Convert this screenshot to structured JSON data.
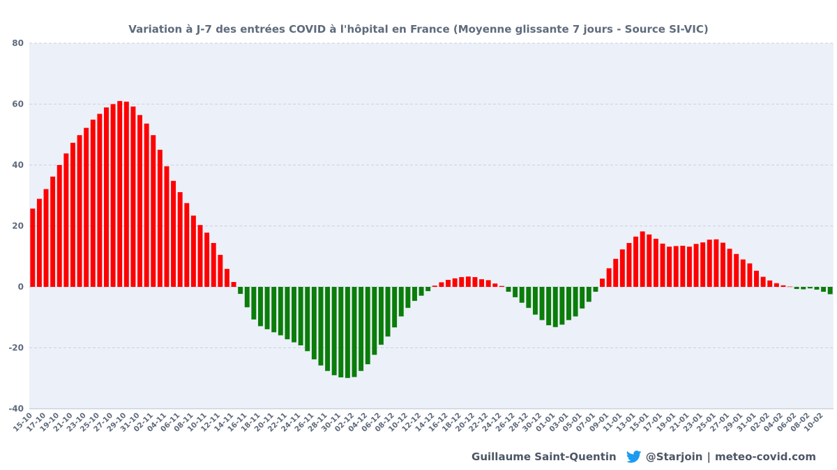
{
  "chart_data": {
    "type": "bar",
    "title": "Variation à J-7 des entrées COVID à l'hôpital en France (Moyenne glissante 7 jours - Source SI-VIC)",
    "xlabel": "",
    "ylabel": "",
    "ylim": [
      -40,
      80
    ],
    "yticks": [
      -40,
      -20,
      0,
      20,
      40,
      60,
      80
    ],
    "grid": true,
    "legend": "none",
    "colors": {
      "positive": "#ff0000",
      "negative": "#0a7d0a",
      "plot_bg": "#ecf0f8",
      "grid": "#c9d1df"
    },
    "categories": [
      "15-10",
      "16-10",
      "17-10",
      "18-10",
      "19-10",
      "20-10",
      "21-10",
      "22-10",
      "23-10",
      "24-10",
      "25-10",
      "26-10",
      "27-10",
      "28-10",
      "29-10",
      "30-10",
      "31-10",
      "01-11",
      "02-11",
      "03-11",
      "04-11",
      "05-11",
      "06-11",
      "07-11",
      "08-11",
      "09-11",
      "10-11",
      "11-11",
      "12-11",
      "13-11",
      "14-11",
      "15-11",
      "16-11",
      "17-11",
      "18-11",
      "19-11",
      "20-11",
      "21-11",
      "22-11",
      "23-11",
      "24-11",
      "25-11",
      "26-11",
      "27-11",
      "28-11",
      "29-11",
      "30-11",
      "01-12",
      "02-12",
      "03-12",
      "04-12",
      "05-12",
      "06-12",
      "07-12",
      "08-12",
      "09-12",
      "10-12",
      "11-12",
      "12-12",
      "13-12",
      "14-12",
      "15-12",
      "16-12",
      "17-12",
      "18-12",
      "19-12",
      "20-12",
      "21-12",
      "22-12",
      "23-12",
      "24-12",
      "25-12",
      "26-12",
      "27-12",
      "28-12",
      "29-12",
      "30-12",
      "31-12",
      "01-01",
      "02-01",
      "03-01",
      "04-01",
      "05-01",
      "06-01",
      "07-01",
      "08-01",
      "09-01",
      "10-01",
      "11-01",
      "12-01",
      "13-01",
      "14-01",
      "15-01",
      "16-01",
      "17-01",
      "18-01",
      "19-01",
      "20-01",
      "21-01",
      "22-01",
      "23-01",
      "24-01",
      "25-01",
      "26-01",
      "27-01",
      "28-01",
      "29-01",
      "30-01",
      "31-01",
      "01-02",
      "02-02",
      "03-02",
      "04-02",
      "05-02",
      "06-02",
      "07-02",
      "08-02",
      "09-02",
      "10-02",
      "11-02"
    ],
    "tick_labels": [
      "15-10",
      "17-10",
      "19-10",
      "21-10",
      "23-10",
      "25-10",
      "27-10",
      "29-10",
      "31-10",
      "02-11",
      "04-11",
      "06-11",
      "08-11",
      "10-11",
      "12-11",
      "14-11",
      "16-11",
      "18-11",
      "20-11",
      "22-11",
      "24-11",
      "26-11",
      "28-11",
      "30-11",
      "02-12",
      "04-12",
      "06-12",
      "08-12",
      "10-12",
      "12-12",
      "14-12",
      "16-12",
      "18-12",
      "20-12",
      "22-12",
      "24-12",
      "26-12",
      "28-12",
      "30-12",
      "01-01",
      "03-01",
      "05-01",
      "07-01",
      "09-01",
      "11-01",
      "13-01",
      "15-01",
      "17-01",
      "19-01",
      "21-01",
      "23-01",
      "25-01",
      "27-01",
      "29-01",
      "31-01",
      "02-02",
      "04-02",
      "06-02",
      "08-02",
      "10-02"
    ],
    "values": [
      25.7,
      28.9,
      32.1,
      36.2,
      40.0,
      43.8,
      47.3,
      49.8,
      52.2,
      54.9,
      56.8,
      58.9,
      60.0,
      61.0,
      60.8,
      59.2,
      56.4,
      53.6,
      49.8,
      45.0,
      39.6,
      34.8,
      31.1,
      27.5,
      23.4,
      20.3,
      17.8,
      14.4,
      10.5,
      5.9,
      1.6,
      -2.3,
      -6.7,
      -10.7,
      -12.9,
      -13.9,
      -14.9,
      -15.9,
      -17.2,
      -18.2,
      -19.2,
      -21.1,
      -23.8,
      -25.8,
      -27.6,
      -29.0,
      -29.7,
      -29.9,
      -29.6,
      -27.6,
      -25.4,
      -22.3,
      -19.0,
      -16.3,
      -13.3,
      -9.7,
      -6.9,
      -4.6,
      -2.9,
      -1.4,
      0.4,
      1.5,
      2.3,
      2.8,
      3.2,
      3.4,
      3.2,
      2.5,
      2.2,
      1.1,
      0.3,
      -1.6,
      -3.4,
      -5.2,
      -6.9,
      -9.1,
      -10.9,
      -12.6,
      -13.2,
      -12.4,
      -10.9,
      -9.7,
      -7.1,
      -4.9,
      -1.6,
      2.7,
      6.1,
      9.2,
      12.3,
      14.4,
      16.5,
      18.2,
      17.2,
      15.8,
      14.2,
      13.2,
      13.4,
      13.5,
      13.2,
      14.1,
      14.6,
      15.5,
      15.6,
      14.5,
      12.5,
      10.8,
      9.0,
      7.7,
      5.3,
      3.3,
      2.1,
      1.2,
      0.5,
      0.1,
      -0.7,
      -0.8,
      -0.5,
      -0.9,
      -1.6,
      -2.4
    ]
  },
  "footer": {
    "author": "Guillaume Saint-Quentin",
    "twitter_handle": "@Starjoin",
    "divider": "|",
    "site": "meteo-covid.com",
    "twitter_icon": "twitter-bird-icon"
  }
}
